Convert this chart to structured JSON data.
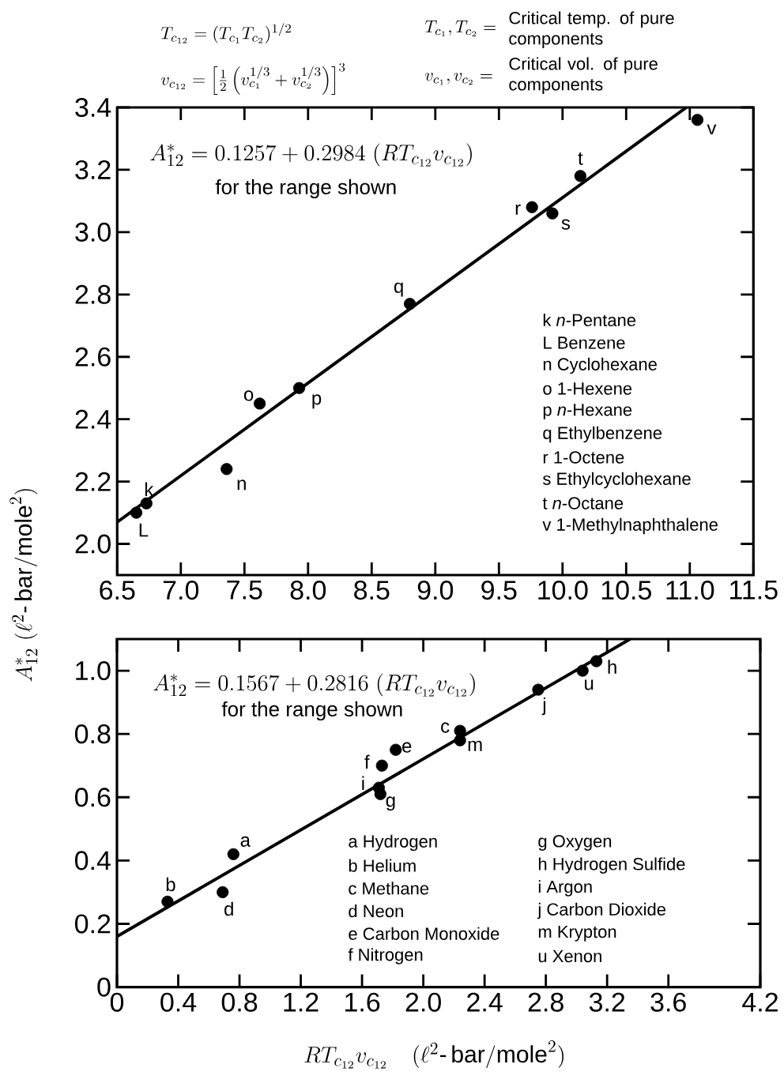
{
  "chart_data": [
    {
      "type": "scatter",
      "ylabel": "A^{*}_{12}\\ (\\ell^{2}\\mbox{-}\\,\\mathrm{bar/mole}^{2})",
      "xlim": [
        6.5,
        11.5
      ],
      "ylim": [
        1.9,
        3.4
      ],
      "xticks": [
        {
          "value": 6.5,
          "label": "6.5"
        },
        {
          "value": 7,
          "label": "7.0"
        },
        {
          "value": 7.5,
          "label": "7.5"
        },
        {
          "value": 8,
          "label": "8.0"
        },
        {
          "value": 8.5,
          "label": "8.5"
        },
        {
          "value": 9,
          "label": "9.0"
        },
        {
          "value": 9.5,
          "label": "9.5"
        },
        {
          "value": 10,
          "label": "10.0"
        },
        {
          "value": 10.5,
          "label": "10.5"
        },
        {
          "value": 11,
          "label": "11.0"
        },
        {
          "value": 11.5,
          "label": "11.5"
        }
      ],
      "yticks": [
        {
          "value": 2,
          "label": "2.0"
        },
        {
          "value": 2.2,
          "label": "2.2"
        },
        {
          "value": 2.4,
          "label": "2.4"
        },
        {
          "value": 2.6,
          "label": "2.6"
        },
        {
          "value": 2.8,
          "label": "2.8"
        },
        {
          "value": 3,
          "label": "3.0"
        },
        {
          "value": 3.2,
          "label": "3.2"
        },
        {
          "value": 3.4,
          "label": "3.4"
        }
      ],
      "series": [
        {
          "marker": "circle",
          "color": "#000000",
          "x": [
            6.73,
            6.65,
            7.36,
            7.62,
            7.93,
            8.8,
            9.76,
            9.92,
            10.14,
            11.06
          ],
          "values": [
            2.13,
            2.1,
            2.24,
            2.45,
            2.5,
            2.77,
            3.08,
            3.06,
            3.18,
            3.36
          ]
        },
        {
          "type": "line",
          "color": "#000000",
          "x": [
            6.5,
            10.973
          ],
          "values": [
            2.07,
            3.4
          ]
        }
      ],
      "annotations": [
        "T_{c_{12}} = (T_{c_1}T_{c_2})^{1/2}",
        "v_{c_{12}} = \\left[\\frac{1}{2}\\left(v_{c_1}^{1/3}+v_{c_2}^{1/3}\\right)\\right]^{3}",
        "T_{c_1}, T_{c_2} =",
        "Critical temp. of pure components",
        "v_{c_1}, v_{c_2} =",
        "Critical vol. of pure components",
        "A^{*}_{12} = 0.1257 + 0.2984\\ (RT_{c_{12}}v_{c_{12}})",
        "for the range shown",
        {
          "text": "k",
          "x": 6.73,
          "y": 2.13
        },
        {
          "text": "L",
          "x": 6.65,
          "y": 2.1
        },
        {
          "text": "n",
          "x": 7.36,
          "y": 2.24
        },
        {
          "text": "o",
          "x": 7.62,
          "y": 2.45
        },
        {
          "text": "p",
          "x": 7.93,
          "y": 2.5
        },
        {
          "text": "q",
          "x": 8.8,
          "y": 2.77
        },
        {
          "text": "r",
          "x": 9.76,
          "y": 3.08
        },
        {
          "text": "s",
          "x": 9.92,
          "y": 3.06
        },
        {
          "text": "t",
          "x": 10.14,
          "y": 3.18
        },
        {
          "text": "v",
          "x": 11.06,
          "y": 3.36
        },
        "k *n*-Pentane",
        "L Benzene",
        "n Cyclohexane",
        "o 1-Hexene",
        "p *n*-Hexane",
        "q Ethylbenzene",
        "r 1-Octene",
        "s Ethylcyclohexane",
        "t *n*-Octane",
        "v 1-Methylnaphthalene"
      ]
    },
    {
      "type": "scatter",
      "xlabel": "RT_{c_{12}}v_{c_{12}}\\quad(\\ell^{2}\\mbox{-}\\,\\mathrm{bar/mole}^{2})",
      "xlim": [
        0,
        4.2
      ],
      "ylim": [
        0,
        1.1
      ],
      "xticks": [
        {
          "value": 0,
          "label": "0"
        },
        {
          "value": 0.4,
          "label": "0.4"
        },
        {
          "value": 0.8,
          "label": "0.8"
        },
        {
          "value": 1.2,
          "label": "1.2"
        },
        {
          "value": 1.6,
          "label": "1.6"
        },
        {
          "value": 2,
          "label": "2.0"
        },
        {
          "value": 2.4,
          "label": "2.4"
        },
        {
          "value": 2.8,
          "label": "2.8"
        },
        {
          "value": 3.2,
          "label": "3.2"
        },
        {
          "value": 3.6,
          "label": "3.6"
        },
        {
          "value": 4.2,
          "label": "4.2"
        }
      ],
      "yticks": [
        {
          "value": 0,
          "label": "0"
        },
        {
          "value": 0.2,
          "label": "0.2"
        },
        {
          "value": 0.4,
          "label": "0.4"
        },
        {
          "value": 0.6,
          "label": "0.6"
        },
        {
          "value": 0.8,
          "label": "0.8"
        },
        {
          "value": 1,
          "label": "1.0"
        }
      ],
      "series": [
        {
          "marker": "circle",
          "color": "#000000",
          "x": [
            0.76,
            0.33,
            2.24,
            0.69,
            1.82,
            1.73,
            1.72,
            3.13,
            1.71,
            2.75,
            2.24,
            3.04
          ],
          "values": [
            0.42,
            0.27,
            0.81,
            0.3,
            0.75,
            0.7,
            0.61,
            1.03,
            0.63,
            0.94,
            0.78,
            1.0
          ]
        },
        {
          "type": "line",
          "color": "#000000",
          "x": [
            0,
            3.35
          ],
          "values": [
            0.16,
            1.1
          ]
        }
      ],
      "annotations": [
        "A^{*}_{12} = 0.1567 + 0.2816\\ (RT_{c_{12}}v_{c_{12}})",
        "for the range shown",
        {
          "text": "a",
          "x": 0.76,
          "y": 0.42
        },
        {
          "text": "b",
          "x": 0.33,
          "y": 0.27
        },
        {
          "text": "c",
          "x": 2.24,
          "y": 0.81
        },
        {
          "text": "d",
          "x": 0.69,
          "y": 0.3
        },
        {
          "text": "e",
          "x": 1.82,
          "y": 0.75
        },
        {
          "text": "f",
          "x": 1.73,
          "y": 0.7
        },
        {
          "text": "g",
          "x": 1.72,
          "y": 0.61
        },
        {
          "text": "h",
          "x": 3.13,
          "y": 1.03
        },
        {
          "text": "i",
          "x": 1.71,
          "y": 0.63
        },
        {
          "text": "j",
          "x": 2.75,
          "y": 0.94
        },
        {
          "text": "m",
          "x": 2.24,
          "y": 0.78
        },
        {
          "text": "u",
          "x": 3.04,
          "y": 1.0
        },
        "a Hydrogen",
        "b Helium",
        "c Methane",
        "d Neon",
        "e Carbon Monoxide",
        "f Nitrogen",
        "g Oxygen",
        "h Hydrogen Sulfide",
        "i Argon",
        "j Carbon Dioxide",
        "m Krypton",
        "u Xenon"
      ]
    }
  ]
}
